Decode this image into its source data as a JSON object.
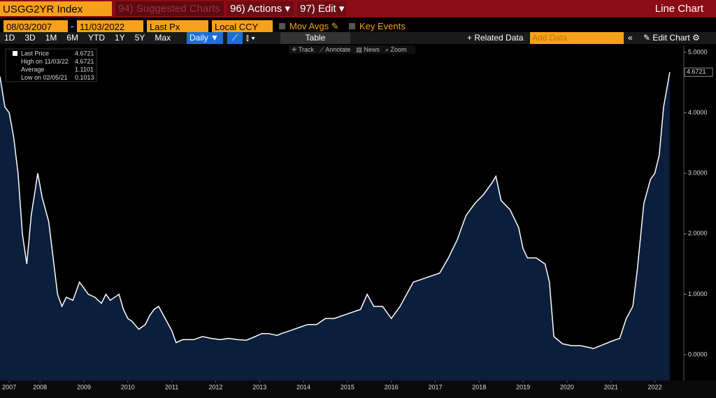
{
  "toolbar": {
    "ticker": "USGG2YR Index",
    "suggested": "94) Suggested Charts",
    "actions": "96) Actions",
    "edit": "97) Edit",
    "view": "Line Chart",
    "start_date": "08/03/2007",
    "end_date": "11/03/2022",
    "field": "Last Px",
    "currency": "Local CCY",
    "mov_avgs": "Mov Avgs",
    "key_events": "Key Events",
    "ranges": [
      "1D",
      "3D",
      "1M",
      "6M",
      "YTD",
      "1Y",
      "5Y",
      "Max"
    ],
    "frequency": "Daily",
    "table": "Table",
    "related": "+ Related Data",
    "add_data": "Add Data",
    "edit_chart": "Edit Chart",
    "tools": [
      "Track",
      "Annotate",
      "News",
      "Zoom"
    ]
  },
  "chart_data": {
    "type": "line",
    "stats": [
      {
        "label": "Last Price",
        "value": "4.6721"
      },
      {
        "label": "High on 11/03/22",
        "value": "4.6721"
      },
      {
        "label": "Average",
        "value": "1.1101"
      },
      {
        "label": "Low on 02/05/21",
        "value": "0.1013"
      }
    ],
    "last_label": "4.6721",
    "x": [
      2007.59,
      2007.7,
      2007.8,
      2007.9,
      2008.0,
      2008.1,
      2008.2,
      2008.3,
      2008.45,
      2008.55,
      2008.7,
      2008.8,
      2008.9,
      2009.0,
      2009.1,
      2009.25,
      2009.4,
      2009.5,
      2009.6,
      2009.75,
      2009.9,
      2010.0,
      2010.1,
      2010.3,
      2010.4,
      2010.5,
      2010.6,
      2010.75,
      2010.9,
      2011.0,
      2011.1,
      2011.2,
      2011.35,
      2011.5,
      2011.6,
      2011.75,
      2011.9,
      2012.0,
      2012.2,
      2012.4,
      2012.6,
      2012.8,
      2013.0,
      2013.2,
      2013.4,
      2013.55,
      2013.7,
      2013.9,
      2014.0,
      2014.2,
      2014.4,
      2014.6,
      2014.8,
      2015.0,
      2015.2,
      2015.4,
      2015.6,
      2015.8,
      2015.95,
      2016.1,
      2016.3,
      2016.5,
      2016.7,
      2016.85,
      2017.0,
      2017.2,
      2017.4,
      2017.6,
      2017.8,
      2018.0,
      2018.2,
      2018.4,
      2018.6,
      2018.8,
      2018.88,
      2019.0,
      2019.2,
      2019.4,
      2019.5,
      2019.6,
      2019.8,
      2020.0,
      2020.1,
      2020.2,
      2020.4,
      2020.6,
      2020.8,
      2021.0,
      2021.1,
      2021.3,
      2021.5,
      2021.7,
      2021.85,
      2022.0,
      2022.1,
      2022.25,
      2022.4,
      2022.5,
      2022.6,
      2022.7,
      2022.84
    ],
    "series": [
      {
        "name": "Last Price",
        "color": "#ffffff",
        "values": [
          4.6,
          4.1,
          4.0,
          3.6,
          3.0,
          2.0,
          1.5,
          2.3,
          3.0,
          2.6,
          2.2,
          1.6,
          1.0,
          0.8,
          0.95,
          0.9,
          1.2,
          1.1,
          1.0,
          0.95,
          0.85,
          1.0,
          0.9,
          1.0,
          0.75,
          0.6,
          0.55,
          0.42,
          0.5,
          0.65,
          0.75,
          0.8,
          0.6,
          0.4,
          0.2,
          0.25,
          0.25,
          0.25,
          0.3,
          0.27,
          0.25,
          0.27,
          0.25,
          0.24,
          0.3,
          0.35,
          0.35,
          0.32,
          0.35,
          0.4,
          0.45,
          0.5,
          0.5,
          0.6,
          0.6,
          0.65,
          0.7,
          0.75,
          1.0,
          0.8,
          0.8,
          0.6,
          0.8,
          1.0,
          1.2,
          1.25,
          1.3,
          1.35,
          1.6,
          1.9,
          2.3,
          2.5,
          2.65,
          2.85,
          2.95,
          2.55,
          2.4,
          2.1,
          1.75,
          1.6,
          1.6,
          1.5,
          1.2,
          0.3,
          0.18,
          0.15,
          0.15,
          0.12,
          0.1013,
          0.16,
          0.22,
          0.27,
          0.6,
          0.8,
          1.4,
          2.5,
          2.9,
          3.0,
          3.3,
          4.1,
          4.6721
        ]
      }
    ],
    "xlim": [
      2007.59,
      2023.16
    ],
    "xticks": [
      {
        "value": 2007.8,
        "label": "2007"
      },
      {
        "value": 2008.5,
        "label": "2008"
      },
      {
        "value": 2009.5,
        "label": "2009"
      },
      {
        "value": 2010.5,
        "label": "2010"
      },
      {
        "value": 2011.5,
        "label": "2011"
      },
      {
        "value": 2012.5,
        "label": "2012"
      },
      {
        "value": 2013.5,
        "label": "2013"
      },
      {
        "value": 2014.5,
        "label": "2014"
      },
      {
        "value": 2015.5,
        "label": "2015"
      },
      {
        "value": 2016.5,
        "label": "2016"
      },
      {
        "value": 2017.5,
        "label": "2017"
      },
      {
        "value": 2018.5,
        "label": "2018"
      },
      {
        "value": 2019.5,
        "label": "2019"
      },
      {
        "value": 2020.5,
        "label": "2020"
      },
      {
        "value": 2021.5,
        "label": "2021"
      },
      {
        "value": 2022.5,
        "label": "2022"
      }
    ],
    "ylim": [
      -0.427,
      5.115
    ],
    "yticks": [
      {
        "value": 0,
        "label": "0.0000"
      },
      {
        "value": 1,
        "label": "1.0000"
      },
      {
        "value": 2,
        "label": "2.0000"
      },
      {
        "value": 3,
        "label": "3.0000"
      },
      {
        "value": 4,
        "label": "4.0000"
      },
      {
        "value": 5,
        "label": "5.0000"
      }
    ],
    "area_color": "#0b1e3b"
  }
}
